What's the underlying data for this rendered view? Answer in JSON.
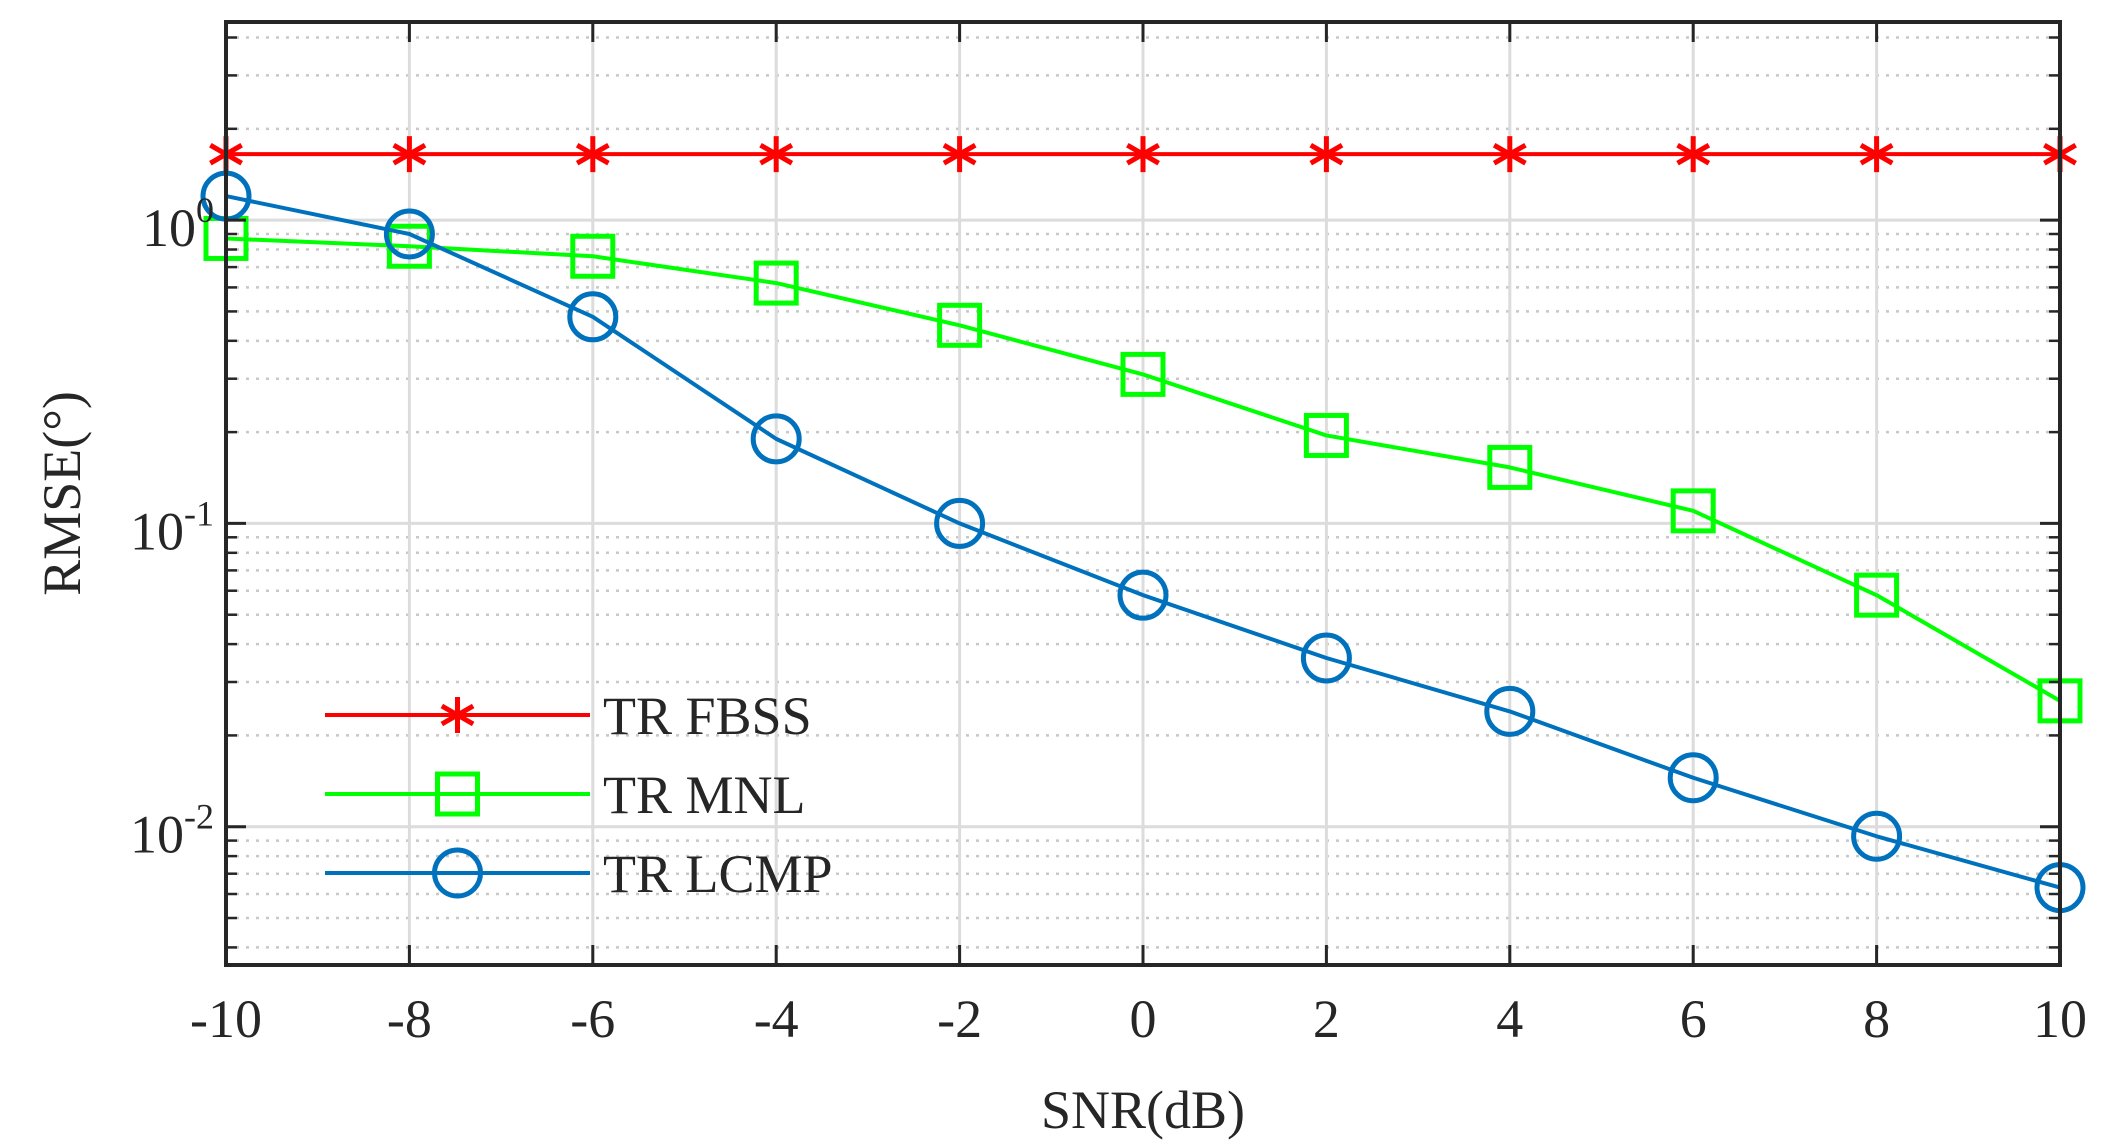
{
  "chart_data": {
    "type": "line",
    "xlabel": "SNR(dB)",
    "ylabel": "RMSE(°)",
    "yscale": "log",
    "xlim": [
      -10,
      10
    ],
    "ylim": [
      0.0035,
      4.5
    ],
    "grid": true,
    "legend_position": "bottom-left",
    "x": [
      -10,
      -8,
      -6,
      -4,
      -2,
      0,
      2,
      4,
      6,
      8,
      10
    ],
    "xticks": [
      "-10",
      "-8",
      "-6",
      "-4",
      "-2",
      "0",
      "2",
      "4",
      "6",
      "8",
      "10"
    ],
    "yticks": [
      {
        "value": 1,
        "base": "10",
        "exp": "0"
      },
      {
        "value": 0.1,
        "base": "10",
        "exp": "-1"
      },
      {
        "value": 0.01,
        "base": "10",
        "exp": "-2"
      }
    ],
    "series": [
      {
        "name": "TR FBSS",
        "color": "#ff0000",
        "marker": "asterisk",
        "values": [
          1.65,
          1.65,
          1.65,
          1.65,
          1.65,
          1.65,
          1.65,
          1.65,
          1.65,
          1.65,
          1.65
        ]
      },
      {
        "name": "TR MNL",
        "color": "#00ff00",
        "marker": "square",
        "values": [
          0.87,
          0.82,
          0.76,
          0.62,
          0.45,
          0.31,
          0.195,
          0.153,
          0.11,
          0.058,
          0.026
        ]
      },
      {
        "name": "TR LCMP",
        "color": "#0072bd",
        "marker": "circle",
        "values": [
          1.2,
          0.9,
          0.48,
          0.19,
          0.1,
          0.058,
          0.036,
          0.024,
          0.0145,
          0.0093,
          0.0063
        ]
      }
    ]
  }
}
